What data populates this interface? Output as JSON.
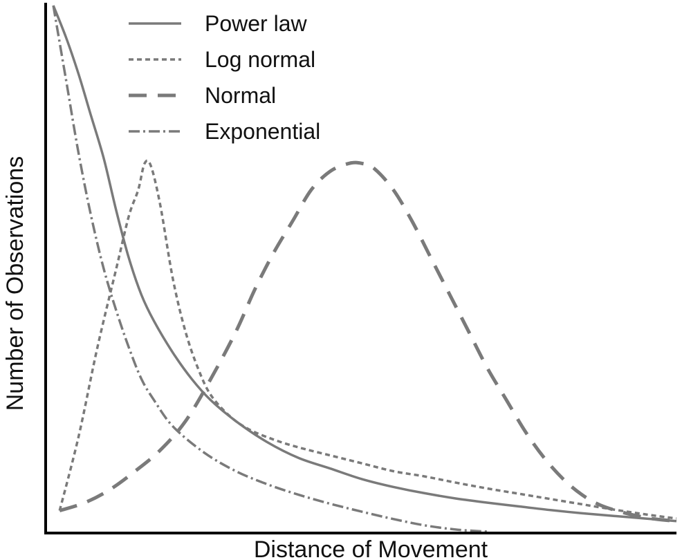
{
  "chart_data": {
    "type": "line",
    "title": "",
    "xlabel": "Distance of Movement",
    "ylabel": "Number of Observations",
    "xlim": [
      0,
      100
    ],
    "ylim": [
      0,
      100
    ],
    "grid": false,
    "legend_position": "top-left",
    "series": [
      {
        "name": "Power law",
        "style": "solid",
        "color": "#7a7a7a",
        "points": [
          [
            1,
            100
          ],
          [
            3,
            94
          ],
          [
            5,
            87
          ],
          [
            7,
            79
          ],
          [
            9,
            71
          ],
          [
            11,
            61
          ],
          [
            13,
            52
          ],
          [
            15,
            45
          ],
          [
            17,
            40
          ],
          [
            20,
            34
          ],
          [
            23,
            29
          ],
          [
            26,
            25
          ],
          [
            30,
            21
          ],
          [
            35,
            17
          ],
          [
            40,
            14
          ],
          [
            45,
            12
          ],
          [
            50,
            10
          ],
          [
            55,
            8.5
          ],
          [
            60,
            7.3
          ],
          [
            65,
            6.3
          ],
          [
            70,
            5.5
          ],
          [
            75,
            4.8
          ],
          [
            80,
            4.1
          ],
          [
            85,
            3.5
          ],
          [
            90,
            3
          ],
          [
            95,
            2.5
          ],
          [
            100,
            2
          ]
        ]
      },
      {
        "name": "Log normal",
        "style": "dotted",
        "color": "#7a7a7a",
        "points": [
          [
            2,
            4
          ],
          [
            5,
            18
          ],
          [
            8,
            35
          ],
          [
            11,
            50
          ],
          [
            13,
            60
          ],
          [
            14.5,
            65
          ],
          [
            15.5,
            70
          ],
          [
            16.5,
            69.5
          ],
          [
            18,
            62
          ],
          [
            20,
            48
          ],
          [
            22,
            38
          ],
          [
            24,
            31
          ],
          [
            26,
            26
          ],
          [
            29,
            22
          ],
          [
            32,
            19.5
          ],
          [
            36,
            17.5
          ],
          [
            40,
            16
          ],
          [
            45,
            14.5
          ],
          [
            50,
            13
          ],
          [
            55,
            11.5
          ],
          [
            60,
            10.5
          ],
          [
            65,
            9.3
          ],
          [
            70,
            8.2
          ],
          [
            75,
            7.2
          ],
          [
            80,
            6.2
          ],
          [
            85,
            5.2
          ],
          [
            90,
            4.2
          ],
          [
            95,
            3.3
          ],
          [
            100,
            2.5
          ]
        ]
      },
      {
        "name": "Normal",
        "style": "dashed",
        "color": "#7a7a7a",
        "points": [
          [
            2,
            4
          ],
          [
            6,
            5.5
          ],
          [
            10,
            8
          ],
          [
            14,
            11.5
          ],
          [
            18,
            15.5
          ],
          [
            22,
            21
          ],
          [
            26,
            29
          ],
          [
            30,
            38
          ],
          [
            33,
            46
          ],
          [
            36,
            53
          ],
          [
            39,
            59
          ],
          [
            42,
            65
          ],
          [
            45,
            68.5
          ],
          [
            48,
            70
          ],
          [
            50,
            70
          ],
          [
            52,
            69
          ],
          [
            55,
            65
          ],
          [
            58,
            59
          ],
          [
            61,
            52
          ],
          [
            64,
            45
          ],
          [
            67,
            38
          ],
          [
            70,
            31
          ],
          [
            73,
            25
          ],
          [
            76,
            19
          ],
          [
            79,
            14
          ],
          [
            82,
            10
          ],
          [
            85,
            7
          ],
          [
            88,
            5
          ],
          [
            92,
            3.5
          ],
          [
            96,
            2.5
          ],
          [
            100,
            2
          ]
        ]
      },
      {
        "name": "Exponential",
        "style": "dash-dot",
        "color": "#7a7a7a",
        "points": [
          [
            1,
            100
          ],
          [
            3,
            86
          ],
          [
            5,
            72
          ],
          [
            7,
            60
          ],
          [
            9,
            50
          ],
          [
            11,
            42
          ],
          [
            13,
            35
          ],
          [
            15,
            29
          ],
          [
            17,
            25
          ],
          [
            20,
            20
          ],
          [
            25,
            15
          ],
          [
            30,
            11.5
          ],
          [
            35,
            9
          ],
          [
            40,
            7
          ],
          [
            45,
            5.3
          ],
          [
            50,
            3.8
          ],
          [
            55,
            2.4
          ],
          [
            60,
            1.2
          ],
          [
            65,
            0.4
          ],
          [
            70,
            0
          ]
        ]
      }
    ]
  }
}
